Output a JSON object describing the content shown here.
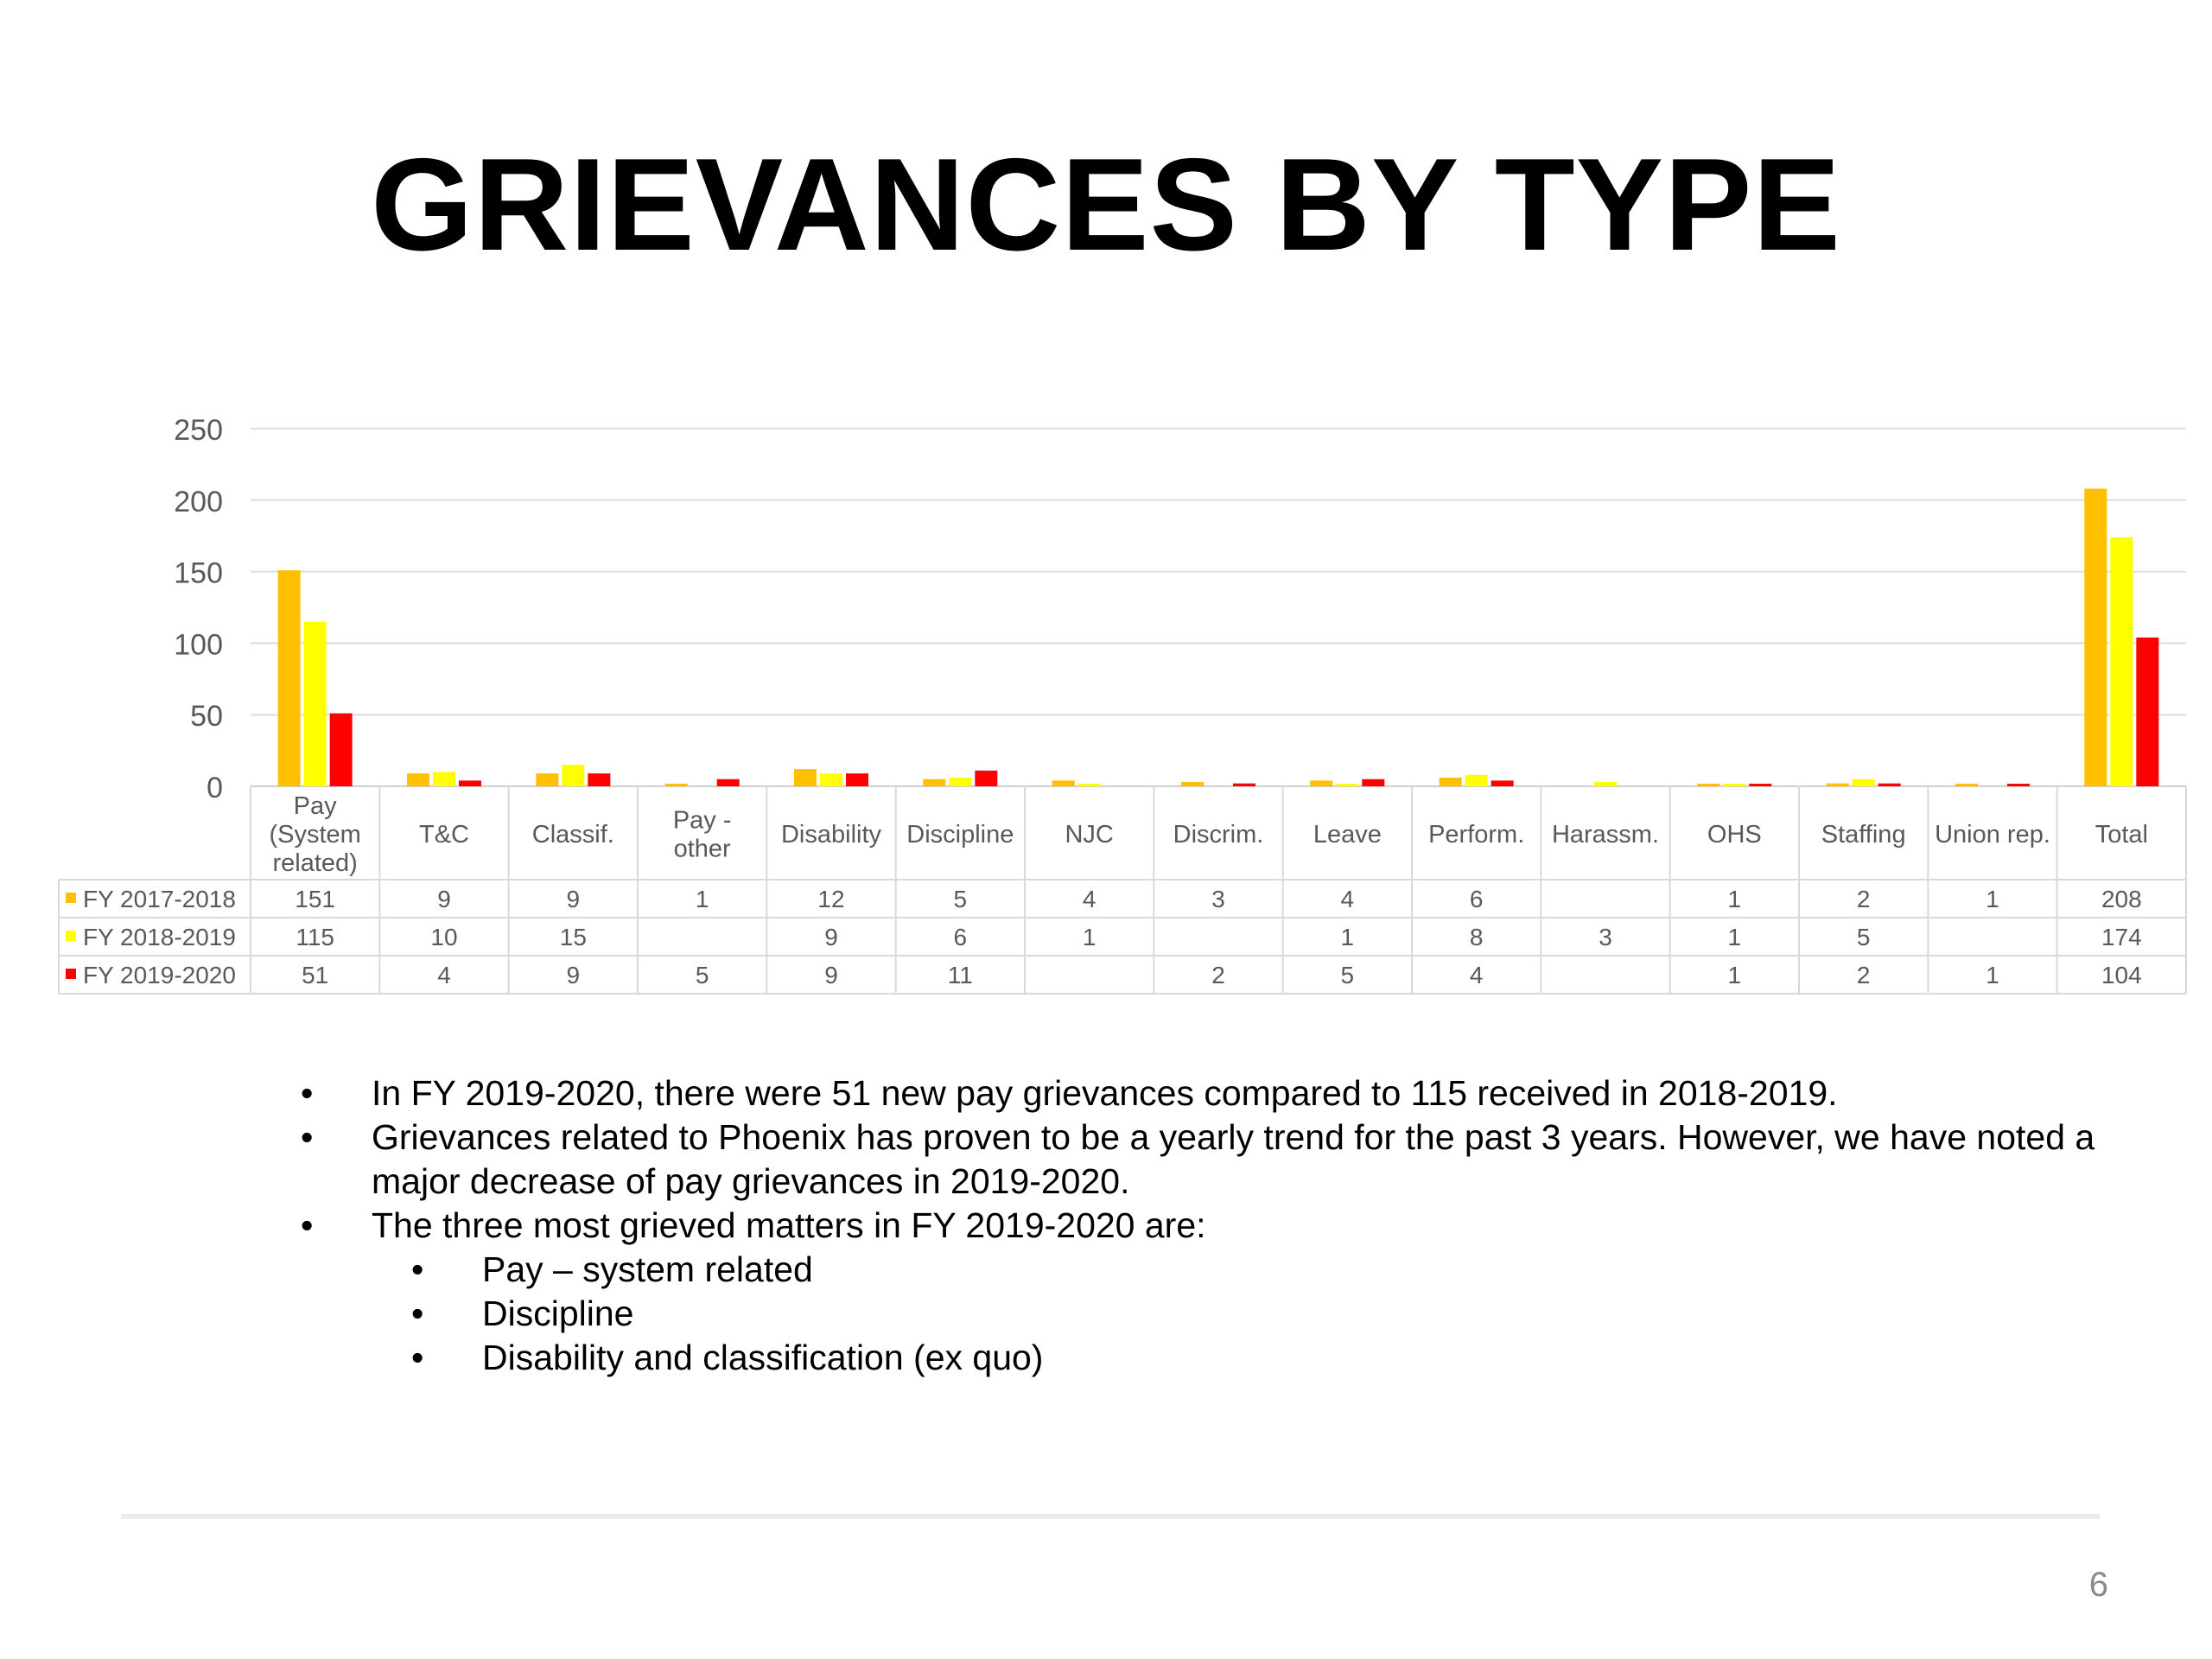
{
  "slide": {
    "title": "GRIEVANCES BY TYPE",
    "page_number": "6"
  },
  "chart_data": {
    "type": "bar",
    "title": "",
    "xlabel": "",
    "ylabel": "",
    "ylim": [
      0,
      250
    ],
    "yticks": [
      "0",
      "50",
      "100",
      "150",
      "200",
      "250"
    ],
    "grid": true,
    "legend": "data table",
    "categories": [
      "Pay (System related)",
      "T&C",
      "Classif.",
      "Pay - other",
      "Disability",
      "Discipline",
      "NJC",
      "Discrim.",
      "Leave",
      "Perform.",
      "Harassm.",
      "OHS",
      "Staffing",
      "Union rep.",
      "Total"
    ],
    "category_lines": [
      [
        "Pay",
        "(System",
        "related)"
      ],
      [
        "T&C"
      ],
      [
        "Classif."
      ],
      [
        "Pay -",
        "other"
      ],
      [
        "Disability"
      ],
      [
        "Discipline"
      ],
      [
        "NJC"
      ],
      [
        "Discrim."
      ],
      [
        "Leave"
      ],
      [
        "Perform."
      ],
      [
        "Harassm."
      ],
      [
        "OHS"
      ],
      [
        "Staffing"
      ],
      [
        "Union rep."
      ],
      [
        "Total"
      ]
    ],
    "series": [
      {
        "name": "FY 2017-2018",
        "color": "#FFC000",
        "values": [
          151,
          9,
          9,
          1,
          12,
          5,
          4,
          3,
          4,
          6,
          null,
          1,
          2,
          1,
          208
        ]
      },
      {
        "name": "FY 2018-2019",
        "color": "#FFFF00",
        "values": [
          115,
          10,
          15,
          null,
          9,
          6,
          1,
          null,
          1,
          8,
          3,
          1,
          5,
          null,
          174
        ]
      },
      {
        "name": "FY 2019-2020",
        "color": "#FF0000",
        "values": [
          51,
          4,
          9,
          5,
          9,
          11,
          null,
          2,
          5,
          4,
          null,
          1,
          2,
          1,
          104
        ]
      }
    ]
  },
  "notes": {
    "bullets": [
      "In FY 2019-2020, there were 51 new pay grievances compared to 115 received in 2018-2019.",
      "Grievances related to Phoenix has proven to be a yearly trend for the past 3 years. However, we have noted a major decrease of pay grievances in 2019-2020.",
      "The three most grieved matters in FY 2019-2020 are:"
    ],
    "sub_bullets": [
      "Pay – system related",
      "Discipline",
      "Disability and classification (ex quo)"
    ]
  }
}
